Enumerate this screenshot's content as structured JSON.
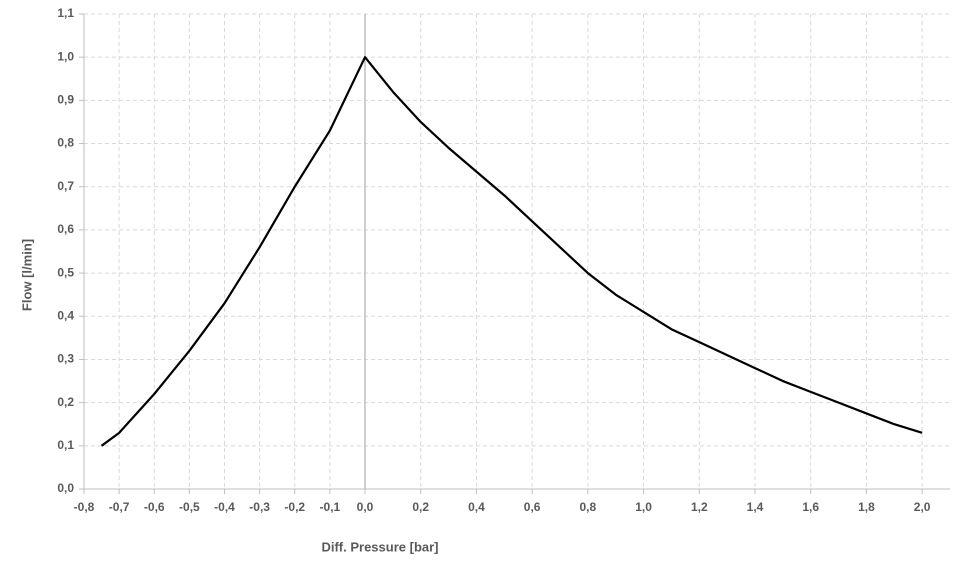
{
  "chart_data": {
    "type": "line",
    "x_label": "Diff. Pressure [bar]",
    "y_label": "Flow [l/min]",
    "x": [
      -0.75,
      -0.7,
      -0.6,
      -0.5,
      -0.4,
      -0.3,
      -0.2,
      -0.1,
      0,
      0.1,
      0.2,
      0.3,
      0.4,
      0.5,
      0.6,
      0.7,
      0.8,
      0.9,
      1.0,
      1.1,
      1.2,
      1.3,
      1.4,
      1.5,
      1.6,
      1.7,
      1.8,
      1.9,
      2.0
    ],
    "values": [
      0.1,
      0.13,
      0.22,
      0.32,
      0.43,
      0.56,
      0.7,
      0.83,
      1.0,
      0.92,
      0.85,
      0.79,
      0.735,
      0.68,
      0.62,
      0.56,
      0.5,
      0.45,
      0.41,
      0.37,
      0.34,
      0.31,
      0.28,
      0.25,
      0.225,
      0.2,
      0.175,
      0.15,
      0.13
    ],
    "color": "#000000",
    "xlim": [
      -0.8,
      2.1
    ],
    "ylim": [
      0,
      1.1
    ],
    "xticks": [
      {
        "value": -0.8,
        "label": "-0,8"
      },
      {
        "value": -0.7,
        "label": "-0,7"
      },
      {
        "value": -0.6,
        "label": "-0,6"
      },
      {
        "value": -0.5,
        "label": "-0,5"
      },
      {
        "value": -0.4,
        "label": "-0,4"
      },
      {
        "value": -0.3,
        "label": "-0,3"
      },
      {
        "value": -0.2,
        "label": "-0,2"
      },
      {
        "value": -0.1,
        "label": "-0,1"
      },
      {
        "value": 0,
        "label": "0,0"
      },
      {
        "value": 0.2,
        "label": "0,2"
      },
      {
        "value": 0.4,
        "label": "0,4"
      },
      {
        "value": 0.6,
        "label": "0,6"
      },
      {
        "value": 0.8,
        "label": "0,8"
      },
      {
        "value": 1.0,
        "label": "1,0"
      },
      {
        "value": 1.2,
        "label": "1,2"
      },
      {
        "value": 1.4,
        "label": "1,4"
      },
      {
        "value": 1.6,
        "label": "1,6"
      },
      {
        "value": 1.8,
        "label": "1,8"
      },
      {
        "value": 2.0,
        "label": "2,0"
      }
    ],
    "yticks": [
      {
        "value": 0,
        "label": "0,0"
      },
      {
        "value": 0.1,
        "label": "0,1"
      },
      {
        "value": 0.2,
        "label": "0,2"
      },
      {
        "value": 0.3,
        "label": "0,3"
      },
      {
        "value": 0.4,
        "label": "0,4"
      },
      {
        "value": 0.5,
        "label": "0,5"
      },
      {
        "value": 0.6,
        "label": "0,6"
      },
      {
        "value": 0.7,
        "label": "0,7"
      },
      {
        "value": 0.8,
        "label": "0,8"
      },
      {
        "value": 0.9,
        "label": "0,9"
      },
      {
        "value": 1.0,
        "label": "1,0"
      },
      {
        "value": 1.1,
        "label": "1,1"
      }
    ],
    "grid": true
  }
}
